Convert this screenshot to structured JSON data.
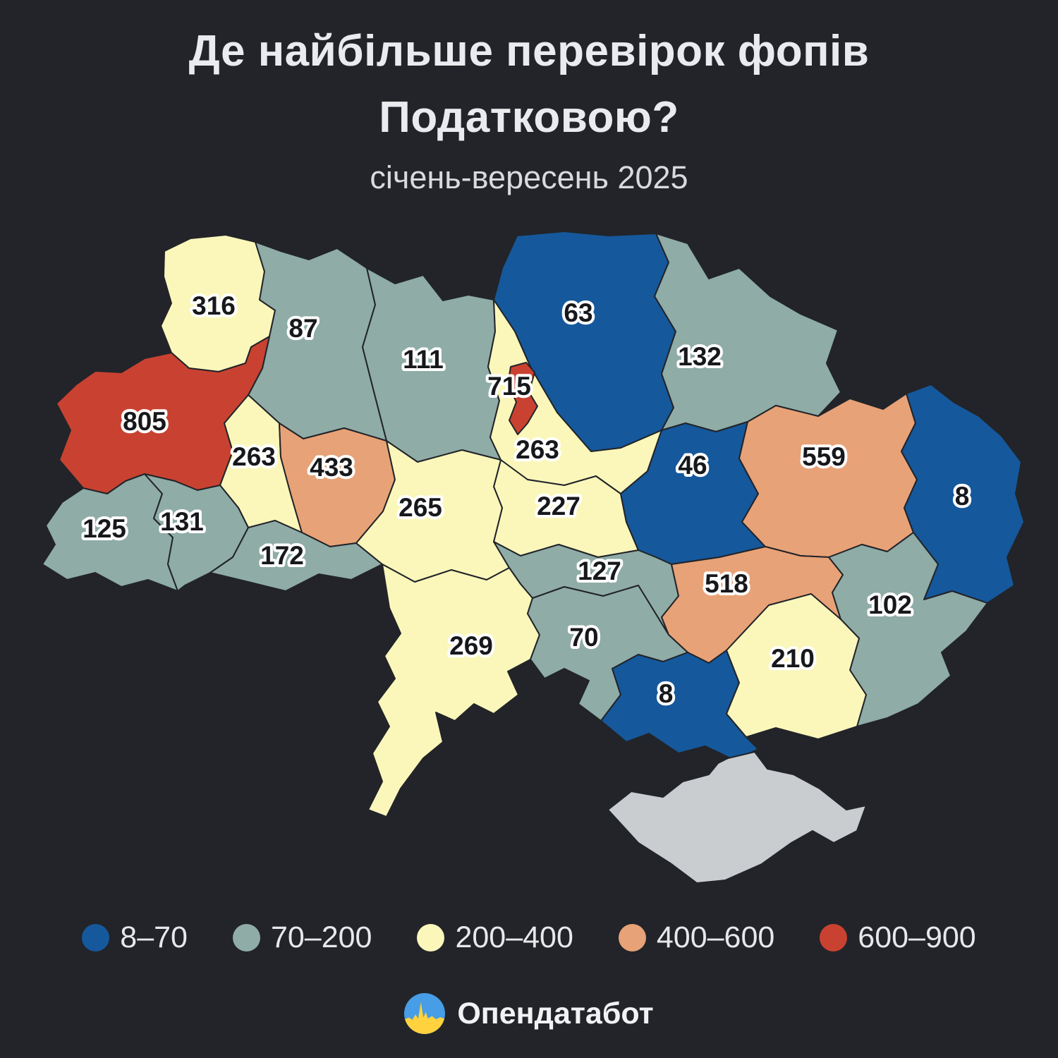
{
  "title": {
    "line1": "Де найбільше перевірок фопів",
    "line2": "Податковою?",
    "subtitle": "січень-вересень 2025"
  },
  "legend": {
    "items": [
      {
        "key": "b1",
        "label": "8–70",
        "color": "#15589c"
      },
      {
        "key": "b2",
        "label": "70–200",
        "color": "#8faca7"
      },
      {
        "key": "b3",
        "label": "200–400",
        "color": "#fbf7bb"
      },
      {
        "key": "b4",
        "label": "400–600",
        "color": "#e8a277"
      },
      {
        "key": "b5",
        "label": "600–900",
        "color": "#c94231"
      }
    ]
  },
  "footer": {
    "brand": "Опендатабот"
  },
  "colors": {
    "background": "#222429",
    "region_stroke": "#222429",
    "label_text": "#17181b",
    "label_halo": "#ffffff",
    "no_data": "#c9cdd0",
    "logo_blue": "#479de6",
    "logo_yellow": "#ffd23e"
  },
  "chart_data": {
    "type": "choropleth_map",
    "title": "Де найбільше перевірок фопів Податковою?",
    "subtitle": "січень-вересень 2025",
    "legend_buckets": [
      "8–70",
      "70–200",
      "200–400",
      "400–600",
      "600–900"
    ],
    "regions": [
      {
        "id": "volyn",
        "value": 316,
        "bucket": "b3"
      },
      {
        "id": "rivne",
        "value": 87,
        "bucket": "b2"
      },
      {
        "id": "zhytomyr",
        "value": 111,
        "bucket": "b2"
      },
      {
        "id": "chernihiv",
        "value": 63,
        "bucket": "b1"
      },
      {
        "id": "sumy",
        "value": 132,
        "bucket": "b2"
      },
      {
        "id": "lviv",
        "value": 805,
        "bucket": "b5"
      },
      {
        "id": "ternopil",
        "value": 263,
        "bucket": "b3"
      },
      {
        "id": "khmelnytskyi",
        "value": 433,
        "bucket": "b4"
      },
      {
        "id": "kyiv-oblast",
        "value": 263,
        "bucket": "b3"
      },
      {
        "id": "kyiv-city",
        "value": 715,
        "bucket": "b5"
      },
      {
        "id": "cherkasy",
        "value": 227,
        "bucket": "b3"
      },
      {
        "id": "poltava",
        "value": 46,
        "bucket": "b1"
      },
      {
        "id": "kharkiv",
        "value": 559,
        "bucket": "b4"
      },
      {
        "id": "luhansk",
        "value": 8,
        "bucket": "b1"
      },
      {
        "id": "zakarpattia",
        "value": 125,
        "bucket": "b2"
      },
      {
        "id": "ivano-frankivsk",
        "value": 131,
        "bucket": "b2"
      },
      {
        "id": "chernivtsi",
        "value": 172,
        "bucket": "b2"
      },
      {
        "id": "vinnytsia",
        "value": 265,
        "bucket": "b3"
      },
      {
        "id": "kirovohrad",
        "value": 127,
        "bucket": "b2"
      },
      {
        "id": "dnipro",
        "value": 518,
        "bucket": "b4"
      },
      {
        "id": "donetsk",
        "value": 102,
        "bucket": "b2"
      },
      {
        "id": "odesa",
        "value": 269,
        "bucket": "b3"
      },
      {
        "id": "mykolaiv",
        "value": 70,
        "bucket": "b2"
      },
      {
        "id": "kherson",
        "value": 8,
        "bucket": "b1"
      },
      {
        "id": "zaporizhzhia",
        "value": 210,
        "bucket": "b3"
      },
      {
        "id": "crimea",
        "value": null,
        "bucket": "nodata"
      }
    ]
  }
}
